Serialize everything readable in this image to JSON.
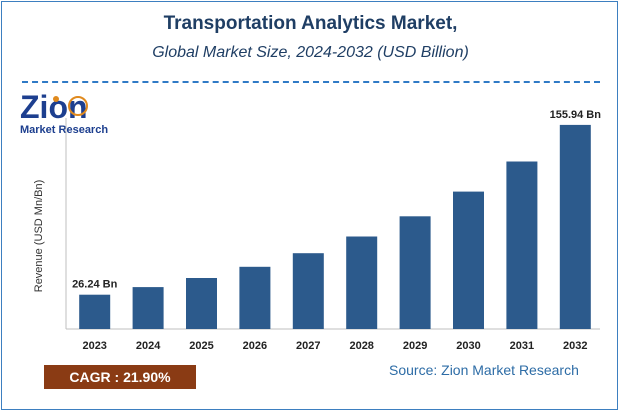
{
  "chart_data": {
    "type": "bar",
    "title": "Transportation Analytics Market,",
    "subtitle": "Global Market Size, 2024-2032 (USD Billion)",
    "ylabel": "Revenue (USD Mn/Bn)",
    "xlabel": "",
    "categories": [
      "2023",
      "2024",
      "2025",
      "2026",
      "2027",
      "2028",
      "2029",
      "2030",
      "2031",
      "2032"
    ],
    "values": [
      26.24,
      31.99,
      39.0,
      47.54,
      57.95,
      70.65,
      86.12,
      104.99,
      127.98,
      155.94
    ],
    "ylim": [
      0,
      175
    ],
    "data_labels": {
      "first": "26.24 Bn",
      "last": "155.94 Bn"
    },
    "bar_color": "#2c5a8c",
    "grid": false
  },
  "logo": {
    "line1": "Zion",
    "line2": "Market Research"
  },
  "cagr": "CAGR : 21.90%",
  "source": "Source: Zion Market Research",
  "colors": {
    "title": "#1f3e64",
    "cagr_bg": "#8a3b14",
    "source": "#2d6ca6",
    "logo_blue": "#1d3f8f",
    "logo_orange": "#e08a1e"
  }
}
